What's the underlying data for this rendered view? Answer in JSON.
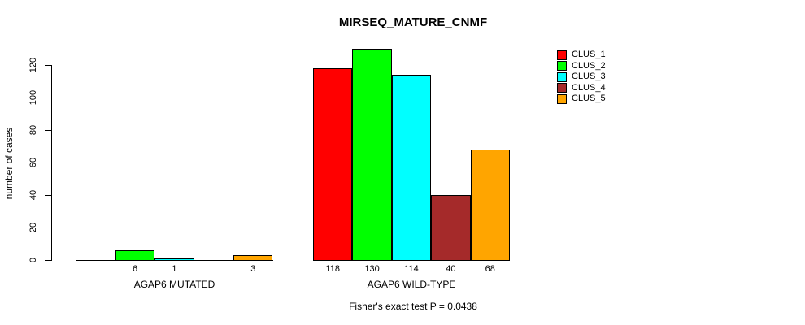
{
  "chart_data": {
    "type": "bar",
    "title": "MIRSEQ_MATURE_CNMF",
    "xlabel": "",
    "ylabel": "number of cases",
    "ylim": [
      0,
      130
    ],
    "yticks": [
      0,
      20,
      40,
      60,
      80,
      100,
      120
    ],
    "grid": false,
    "categories": [
      "AGAP6 MUTATED",
      "AGAP6 WILD-TYPE"
    ],
    "series": [
      {
        "name": "CLUS_1",
        "color": "#ff0000",
        "values": [
          0,
          118
        ]
      },
      {
        "name": "CLUS_2",
        "color": "#00ff00",
        "values": [
          6,
          130
        ]
      },
      {
        "name": "CLUS_3",
        "color": "#00ffff",
        "values": [
          1,
          114
        ]
      },
      {
        "name": "CLUS_4",
        "color": "#a52a2a",
        "values": [
          0,
          40
        ]
      },
      {
        "name": "CLUS_5",
        "color": "#ffa500",
        "values": [
          3,
          68
        ]
      }
    ],
    "bar_value_labels_shown": [
      [
        6,
        1,
        3
      ],
      [
        118,
        130,
        114,
        40,
        68
      ]
    ],
    "legend_position": "top-right",
    "legend_entries": [
      "CLUS_1",
      "CLUS_2",
      "CLUS_3",
      "CLUS_4",
      "CLUS_5"
    ],
    "annotation": "Fisher's exact test P = 0.0438"
  }
}
